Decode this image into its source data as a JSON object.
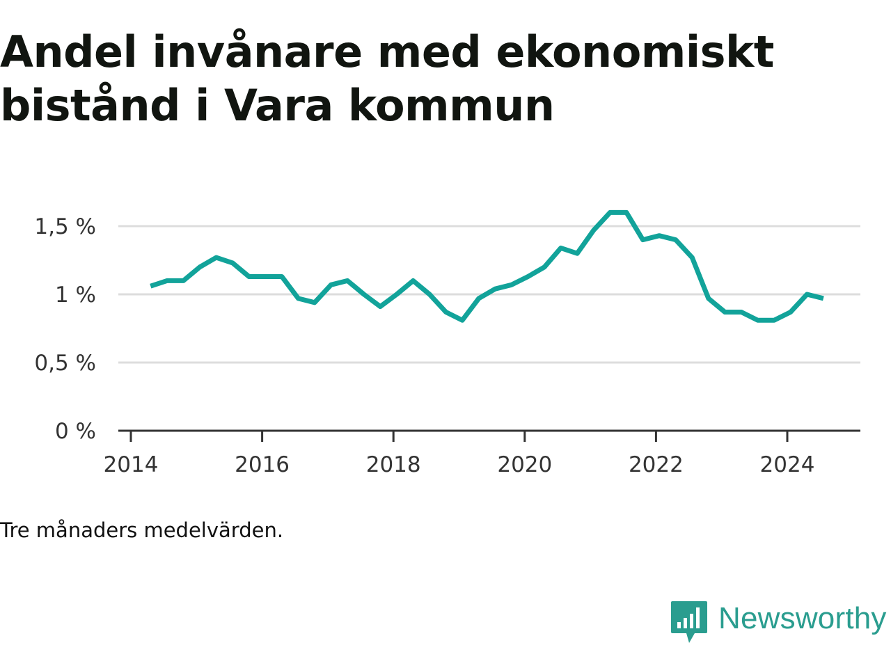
{
  "title": "Andel invånare med ekonomiskt bistånd i Vara kommun",
  "note": "Tre månaders medelvärden.",
  "brand": {
    "name": "Newsworthy",
    "icon": "chart-bubble-icon",
    "color": "#2a9d8f"
  },
  "chart_data": {
    "type": "line",
    "title": "Andel invånare med ekonomiskt bistånd i Vara kommun",
    "xlabel": "",
    "ylabel": "",
    "line_color": "#12a39a",
    "grid": true,
    "xlim": [
      2013.9,
      2025.2
    ],
    "ylim": [
      0,
      1.6
    ],
    "x_ticks": [
      2014,
      2016,
      2018,
      2020,
      2022,
      2024
    ],
    "x_tick_labels": [
      "2014",
      "2016",
      "2018",
      "2020",
      "2022",
      "2024"
    ],
    "y_ticks": [
      0,
      0.5,
      1,
      1.5
    ],
    "y_tick_labels": [
      "0 %",
      "0,5 %",
      "1 %",
      "1,5 %"
    ],
    "series": [
      {
        "x": [
          2014.3,
          2014.55,
          2014.8,
          2015.05,
          2015.3,
          2015.55,
          2015.8,
          2016.05,
          2016.3,
          2016.55,
          2016.8,
          2017.05,
          2017.3,
          2017.55,
          2017.8,
          2018.05,
          2018.3,
          2018.55,
          2018.8,
          2019.05,
          2019.3,
          2019.55,
          2019.8,
          2020.05,
          2020.3,
          2020.55,
          2020.8,
          2021.05,
          2021.3,
          2021.55,
          2021.8,
          2022.05,
          2022.3,
          2022.55,
          2022.8,
          2023.05,
          2023.3,
          2023.55,
          2023.8,
          2024.05,
          2024.3,
          2024.55
        ],
        "y": [
          1.06,
          1.1,
          1.1,
          1.2,
          1.27,
          1.23,
          1.13,
          1.13,
          1.13,
          0.97,
          0.94,
          1.07,
          1.1,
          1.0,
          0.91,
          1.0,
          1.1,
          1.0,
          0.87,
          0.81,
          0.97,
          1.04,
          1.07,
          1.13,
          1.2,
          1.34,
          1.3,
          1.47,
          1.6,
          1.6,
          1.4,
          1.43,
          1.4,
          1.27,
          0.97,
          0.87,
          0.87,
          0.81,
          0.81,
          0.87,
          1.0,
          0.97
        ]
      }
    ]
  }
}
